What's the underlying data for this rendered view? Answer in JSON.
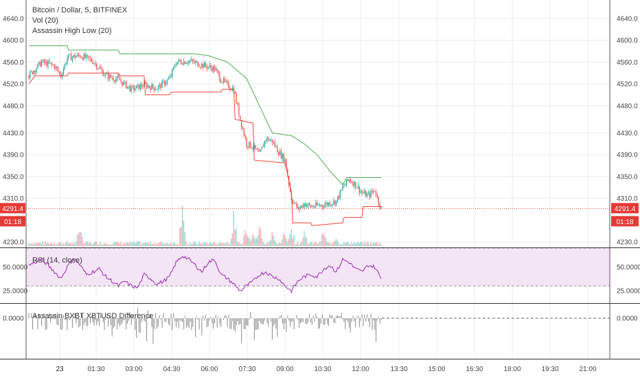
{
  "colors": {
    "up": "#26a69a",
    "down": "#ef5350",
    "hi_line": "#4caf50",
    "lo_line": "#f44336",
    "rsi_line": "#9c27b0",
    "rsi_band": "#f3e5f5",
    "diff_bar": "#888888",
    "grid": "#eeeeee",
    "price_line": "#e53935",
    "axis_text": "#444444"
  },
  "main": {
    "symbol_title": "Bitcoin / Dollar, 5, BITFINEX",
    "vol_label": "Vol (20)",
    "indicator_label": "Assassin High Low (20)",
    "price_badge": "4291.4",
    "countdown_badge": "01:18"
  },
  "rsi": {
    "label": "RSI (14, close)",
    "ticks": [
      "50.0000",
      "25.0000"
    ]
  },
  "diff": {
    "label": "Assassin BXBT XBTUSD Difference",
    "ticks": [
      "0.0000"
    ]
  },
  "chart_data": [
    {
      "type": "candlestick",
      "title": "Bitcoin / Dollar, 5, BITFINEX",
      "y_ticks": [
        "4640.0",
        "4600.0",
        "4560.0",
        "4520.0",
        "4480.0",
        "4430.0",
        "4390.0",
        "4350.0",
        "4310.0",
        "4230.0"
      ],
      "y_range": [
        4220,
        4655
      ],
      "x_ticks": [
        "23",
        "01:30",
        "03:00",
        "04:30",
        "06:00",
        "07:30",
        "09:00",
        "10:30",
        "12:00",
        "13:30",
        "15:00",
        "16:30",
        "18:00",
        "19:30",
        "21:00"
      ],
      "last_price": 4291.4,
      "close_anchors": [
        [
          0,
          4535
        ],
        [
          10,
          4560
        ],
        [
          20,
          4553
        ],
        [
          25,
          4535
        ],
        [
          30,
          4568
        ],
        [
          40,
          4572
        ],
        [
          50,
          4562
        ],
        [
          60,
          4535
        ],
        [
          70,
          4528
        ],
        [
          80,
          4510
        ],
        [
          90,
          4518
        ],
        [
          100,
          4512
        ],
        [
          110,
          4530
        ],
        [
          115,
          4560
        ],
        [
          125,
          4562
        ],
        [
          135,
          4555
        ],
        [
          145,
          4548
        ],
        [
          150,
          4528
        ],
        [
          155,
          4518
        ],
        [
          160,
          4510
        ],
        [
          165,
          4455
        ],
        [
          170,
          4410
        ],
        [
          175,
          4405
        ],
        [
          180,
          4390
        ],
        [
          185,
          4420
        ],
        [
          190,
          4415
        ],
        [
          195,
          4395
        ],
        [
          200,
          4380
        ],
        [
          205,
          4310
        ],
        [
          210,
          4290
        ],
        [
          215,
          4300
        ],
        [
          220,
          4295
        ],
        [
          230,
          4298
        ],
        [
          240,
          4305
        ],
        [
          245,
          4330
        ],
        [
          250,
          4345
        ],
        [
          255,
          4335
        ],
        [
          260,
          4320
        ],
        [
          265,
          4315
        ],
        [
          270,
          4325
        ],
        [
          275,
          4291
        ]
      ],
      "hi_anchors": [
        [
          0,
          4590
        ],
        [
          30,
          4590
        ],
        [
          31,
          4582
        ],
        [
          70,
          4582
        ],
        [
          71,
          4575
        ],
        [
          130,
          4575
        ],
        [
          140,
          4572
        ],
        [
          155,
          4560
        ],
        [
          170,
          4530
        ],
        [
          180,
          4480
        ],
        [
          190,
          4430
        ],
        [
          205,
          4425
        ],
        [
          215,
          4410
        ],
        [
          225,
          4390
        ],
        [
          235,
          4360
        ],
        [
          245,
          4335
        ],
        [
          248,
          4348
        ],
        [
          275,
          4348
        ]
      ],
      "lo_anchors": [
        [
          0,
          4520
        ],
        [
          5,
          4535
        ],
        [
          30,
          4535
        ],
        [
          31,
          4540
        ],
        [
          70,
          4540
        ],
        [
          71,
          4535
        ],
        [
          90,
          4535
        ],
        [
          91,
          4500
        ],
        [
          110,
          4500
        ],
        [
          111,
          4505
        ],
        [
          150,
          4505
        ],
        [
          151,
          4510
        ],
        [
          160,
          4510
        ],
        [
          161,
          4455
        ],
        [
          175,
          4448
        ],
        [
          176,
          4380
        ],
        [
          200,
          4375
        ],
        [
          205,
          4320
        ],
        [
          206,
          4265
        ],
        [
          220,
          4265
        ],
        [
          221,
          4260
        ],
        [
          245,
          4265
        ],
        [
          246,
          4275
        ],
        [
          260,
          4275
        ],
        [
          261,
          4295
        ],
        [
          275,
          4295
        ]
      ],
      "volume_spikes": [
        [
          40,
          20
        ],
        [
          120,
          45
        ],
        [
          160,
          40
        ],
        [
          170,
          22
        ],
        [
          175,
          18
        ],
        [
          180,
          22
        ],
        [
          190,
          15
        ],
        [
          200,
          18
        ],
        [
          205,
          22
        ],
        [
          215,
          14
        ],
        [
          230,
          12
        ],
        [
          240,
          10
        ]
      ]
    },
    {
      "type": "line",
      "title": "RSI (14, close)",
      "y_range": [
        12,
        70
      ],
      "bands": [
        30,
        70
      ],
      "y_ticks": [
        "50.0000",
        "25.0000"
      ],
      "anchors": [
        [
          0,
          52
        ],
        [
          10,
          58
        ],
        [
          15,
          52
        ],
        [
          20,
          45
        ],
        [
          25,
          38
        ],
        [
          30,
          50
        ],
        [
          35,
          60
        ],
        [
          40,
          52
        ],
        [
          45,
          42
        ],
        [
          50,
          45
        ],
        [
          55,
          48
        ],
        [
          60,
          40
        ],
        [
          65,
          35
        ],
        [
          70,
          30
        ],
        [
          75,
          35
        ],
        [
          80,
          30
        ],
        [
          85,
          28
        ],
        [
          90,
          42
        ],
        [
          95,
          38
        ],
        [
          100,
          32
        ],
        [
          105,
          35
        ],
        [
          110,
          40
        ],
        [
          115,
          55
        ],
        [
          120,
          62
        ],
        [
          125,
          58
        ],
        [
          130,
          52
        ],
        [
          135,
          45
        ],
        [
          140,
          55
        ],
        [
          145,
          58
        ],
        [
          150,
          42
        ],
        [
          155,
          38
        ],
        [
          160,
          32
        ],
        [
          165,
          25
        ],
        [
          170,
          30
        ],
        [
          175,
          35
        ],
        [
          180,
          42
        ],
        [
          185,
          45
        ],
        [
          190,
          40
        ],
        [
          195,
          38
        ],
        [
          200,
          30
        ],
        [
          205,
          25
        ],
        [
          210,
          35
        ],
        [
          215,
          40
        ],
        [
          220,
          42
        ],
        [
          225,
          40
        ],
        [
          230,
          48
        ],
        [
          235,
          52
        ],
        [
          240,
          45
        ],
        [
          245,
          58
        ],
        [
          250,
          55
        ],
        [
          255,
          48
        ],
        [
          260,
          45
        ],
        [
          265,
          52
        ],
        [
          270,
          50
        ],
        [
          275,
          38
        ]
      ]
    },
    {
      "type": "bar",
      "title": "Assassin BXBT XBTUSD Difference",
      "y_ticks": [
        "0.0000"
      ],
      "baseline": 0,
      "dashed_extension": true
    }
  ]
}
